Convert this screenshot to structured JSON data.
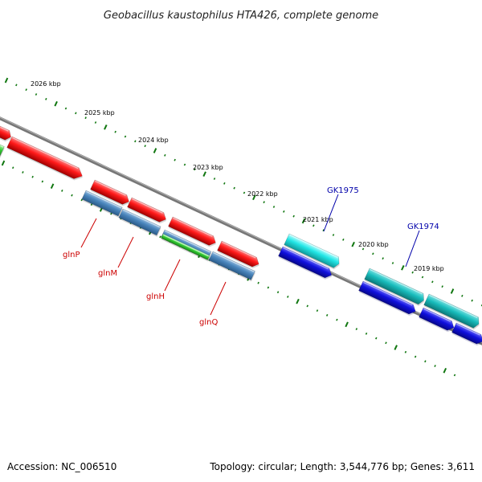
{
  "title": "Geobacillus kaustophilus HTA426, complete genome",
  "ticks": [
    "2026 kbp",
    "2025 kbp",
    "2024 kbp",
    "2023 kbp",
    "2022 kbp",
    "2021 kbp",
    "2020 kbp",
    "2019 kbp"
  ],
  "gene_labels": [
    {
      "name": "GK1975",
      "color": "#0000aa"
    },
    {
      "name": "GK1974",
      "color": "#0000aa"
    },
    {
      "name": "glnP",
      "color": "#cc0000"
    },
    {
      "name": "glnM",
      "color": "#cc0000"
    },
    {
      "name": "glnH",
      "color": "#cc0000"
    },
    {
      "name": "glnQ",
      "color": "#cc0000"
    }
  ],
  "colors": {
    "cds_red": "#ff1a1a",
    "trna_cyan": "#22e6e6",
    "orf_blue": "#1010dd",
    "steel_blue": "#4a86bd",
    "green": "#33cc33",
    "teal": "#18bcbc",
    "backbone": "#777777",
    "tick_green": "#117711"
  },
  "footer": {
    "accession": "Accession: NC_006510",
    "summary": "Topology: circular; Length: 3,544,776 bp; Genes: 3,611"
  }
}
